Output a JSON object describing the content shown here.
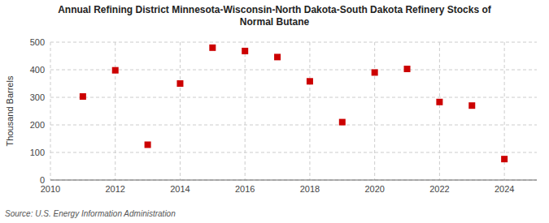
{
  "chart_data": {
    "type": "scatter",
    "title": "Annual Refining District Minnesota-Wisconsin-North Dakota-South Dakota Refinery Stocks of\nNormal Butane",
    "ylabel": "Thousand Barrels",
    "source": "Source: U.S. Energy Information Administration",
    "x": [
      2011,
      2012,
      2013,
      2014,
      2015,
      2016,
      2017,
      2018,
      2019,
      2020,
      2021,
      2022,
      2023,
      2024
    ],
    "values": [
      303,
      398,
      128,
      350,
      480,
      468,
      446,
      358,
      210,
      390,
      403,
      283,
      270,
      76
    ],
    "xlim": [
      2010,
      2025
    ],
    "ylim": [
      0,
      500
    ],
    "xticks": [
      2010,
      2012,
      2014,
      2016,
      2018,
      2020,
      2022,
      2024
    ],
    "yticks": [
      0,
      100,
      200,
      300,
      400,
      500
    ],
    "color": "#cc0000",
    "marker": "square",
    "grid": true
  }
}
